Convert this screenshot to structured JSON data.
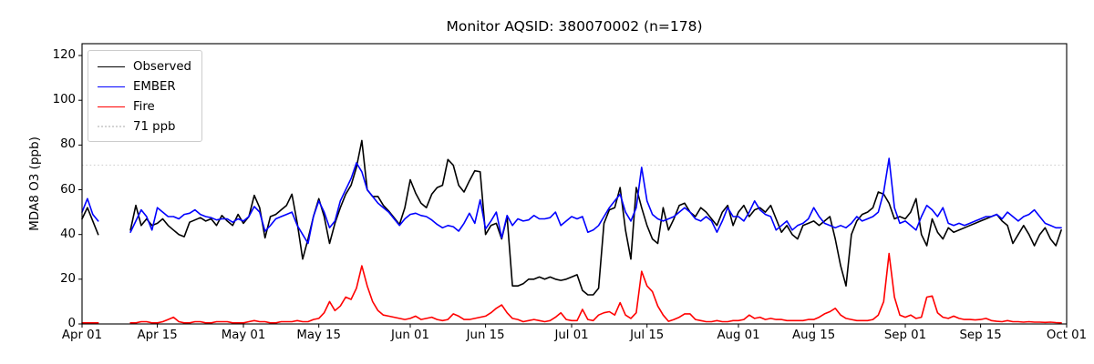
{
  "chart_data": {
    "type": "line",
    "title": "Monitor AQSID: 380070002 (n=178)",
    "xlabel": "",
    "ylabel": "MDA8 O3 (ppb)",
    "ylim": [
      0,
      125.3
    ],
    "grid": false,
    "legend_position": "upper left",
    "x_unit": "days since Apr 01 (daily values, Apr 01 - Sep 30)",
    "x_range_days": 183,
    "missing_data_days": "Apr 05 - Apr 09",
    "y_ticks": [
      0,
      20,
      40,
      60,
      80,
      100,
      120
    ],
    "x_ticks": [
      {
        "label": "Apr 01",
        "day": 0
      },
      {
        "label": "Apr 15",
        "day": 14
      },
      {
        "label": "May 01",
        "day": 30
      },
      {
        "label": "May 15",
        "day": 44
      },
      {
        "label": "Jun 01",
        "day": 61
      },
      {
        "label": "Jun 15",
        "day": 75
      },
      {
        "label": "Jul 01",
        "day": 91
      },
      {
        "label": "Jul 15",
        "day": 105
      },
      {
        "label": "Aug 01",
        "day": 122
      },
      {
        "label": "Aug 15",
        "day": 136
      },
      {
        "label": "Sep 01",
        "day": 153
      },
      {
        "label": "Sep 15",
        "day": 167
      },
      {
        "label": "Oct 01",
        "day": 183
      }
    ],
    "threshold": {
      "value": 71,
      "label": "71 ppb",
      "color": "#d3d3d3",
      "style": "dotted"
    },
    "series": [
      {
        "name": "Observed",
        "color": "#000000",
        "values": [
          47,
          52,
          46,
          40,
          null,
          null,
          null,
          null,
          null,
          42,
          53,
          44,
          47,
          44,
          45,
          47,
          44,
          42,
          40,
          39,
          45.5,
          46.5,
          47.5,
          46,
          47,
          44,
          48.5,
          46,
          44,
          49,
          45,
          48,
          57.5,
          52,
          38.5,
          48,
          49,
          51,
          53,
          58,
          45,
          29,
          38,
          48,
          56,
          48,
          36,
          45,
          52,
          58,
          62,
          70,
          82,
          60,
          57,
          57,
          53,
          50.5,
          47.5,
          44.5,
          52,
          64.5,
          58.5,
          54,
          52,
          58,
          61,
          62,
          73.5,
          71,
          62,
          59,
          64,
          68.5,
          68,
          40,
          44,
          45,
          38,
          48,
          17,
          17,
          18,
          20,
          20,
          21,
          20,
          21,
          20,
          19.5,
          20,
          21,
          22,
          15,
          13,
          13,
          16,
          45,
          51,
          52,
          61,
          42,
          29,
          61,
          52,
          44,
          38,
          36,
          52,
          42,
          47,
          53,
          54,
          50,
          48,
          52,
          50,
          47,
          44,
          50,
          53,
          44,
          50,
          53,
          48,
          51,
          52,
          50,
          53,
          47,
          41,
          44,
          40,
          38,
          44,
          45,
          46,
          44,
          46,
          48,
          38,
          26,
          17,
          40,
          46,
          49,
          50,
          52,
          59,
          58,
          54,
          47,
          48,
          47,
          50,
          56,
          40,
          35,
          47,
          41,
          38,
          43,
          41,
          42,
          43,
          44,
          45,
          46,
          47,
          48,
          49,
          46,
          44,
          36,
          40,
          44,
          40,
          35,
          40,
          43,
          38,
          35,
          42
        ]
      },
      {
        "name": "EMBER",
        "color": "#0000ff",
        "values": [
          50,
          56,
          49,
          46,
          null,
          null,
          null,
          null,
          null,
          41,
          46,
          51,
          48,
          42,
          52,
          50,
          48,
          48,
          47,
          49,
          49.5,
          51,
          49,
          48,
          47.5,
          46.5,
          47,
          47,
          45.5,
          47,
          46,
          48,
          52.5,
          50,
          41.5,
          44,
          47,
          48,
          49,
          50,
          44,
          40,
          36,
          48,
          55,
          50,
          43,
          46,
          55,
          60,
          65,
          72,
          68,
          60,
          57,
          54,
          52,
          50,
          47,
          44,
          47,
          49,
          49.5,
          48.5,
          48,
          46.5,
          44.5,
          43,
          44,
          43.5,
          41.5,
          45,
          49.5,
          45,
          55.5,
          42.5,
          46,
          50,
          38.5,
          48.5,
          44,
          47,
          46,
          46.5,
          48.5,
          47,
          47,
          47.5,
          50,
          44,
          46,
          48,
          47,
          48,
          41,
          42,
          44,
          48,
          52,
          55,
          58,
          50,
          46,
          52,
          70,
          55,
          49,
          47,
          46,
          47,
          48,
          50,
          52,
          50,
          47,
          46,
          48,
          46,
          41,
          46,
          52,
          48,
          48,
          46,
          50,
          55,
          51,
          49,
          48,
          42,
          44,
          46,
          42,
          44,
          45,
          47,
          52,
          48,
          45,
          44,
          43,
          44,
          43,
          45,
          48,
          46,
          47,
          48,
          50,
          59,
          74,
          52,
          45,
          46,
          44,
          42,
          48,
          53,
          51,
          48,
          52,
          45,
          44,
          45,
          44,
          45,
          46,
          47,
          48,
          48,
          49,
          47,
          50,
          48,
          46,
          48,
          49,
          51,
          48,
          45,
          44,
          43,
          43
        ]
      },
      {
        "name": "Fire",
        "color": "#ff0000",
        "values": [
          0.5,
          0.5,
          0.5,
          0.5,
          null,
          null,
          null,
          null,
          null,
          0.5,
          0.5,
          1,
          1,
          0.5,
          0.5,
          1,
          2,
          3,
          1,
          0.5,
          0.5,
          1,
          1,
          0.5,
          0.5,
          1,
          1,
          1,
          0.5,
          0.5,
          0.5,
          1,
          1.5,
          1,
          1,
          0.5,
          0.5,
          1,
          1,
          1,
          1.5,
          1,
          1,
          2,
          2.5,
          5,
          10,
          6,
          8,
          12,
          11,
          16,
          26,
          17,
          10,
          6,
          4,
          3.5,
          3,
          2.5,
          2,
          2.5,
          3.5,
          2,
          2.5,
          3,
          2,
          1.5,
          2,
          4.5,
          3.5,
          2,
          2,
          2.5,
          3,
          3.5,
          5,
          7,
          8.5,
          5,
          2.5,
          2,
          1,
          1.5,
          2,
          1.5,
          1,
          1.5,
          3,
          5,
          2,
          1.5,
          1.5,
          6.5,
          2,
          1.5,
          4,
          5,
          5.5,
          4,
          9.5,
          4,
          2.5,
          5,
          23.5,
          17,
          14.5,
          8,
          4,
          1.2,
          2,
          3,
          4.5,
          4.5,
          2,
          1.5,
          1,
          1,
          1.5,
          1,
          1,
          1.5,
          1.5,
          2,
          4,
          2.5,
          3,
          2,
          2.5,
          2,
          2,
          1.5,
          1.5,
          1.5,
          1.5,
          2,
          2,
          3,
          4.5,
          5.5,
          7,
          4,
          2.5,
          2,
          1.5,
          1.5,
          1.5,
          2,
          4,
          10,
          31.5,
          12,
          4,
          3,
          4,
          2.5,
          3,
          12,
          12.5,
          5,
          3,
          2.5,
          3.5,
          2.5,
          2,
          2,
          1.8,
          2,
          2.5,
          1.5,
          1.2,
          1,
          1.5,
          1,
          1,
          0.8,
          1,
          0.8,
          0.8,
          0.7,
          0.8,
          0.6,
          0.5
        ]
      }
    ]
  }
}
